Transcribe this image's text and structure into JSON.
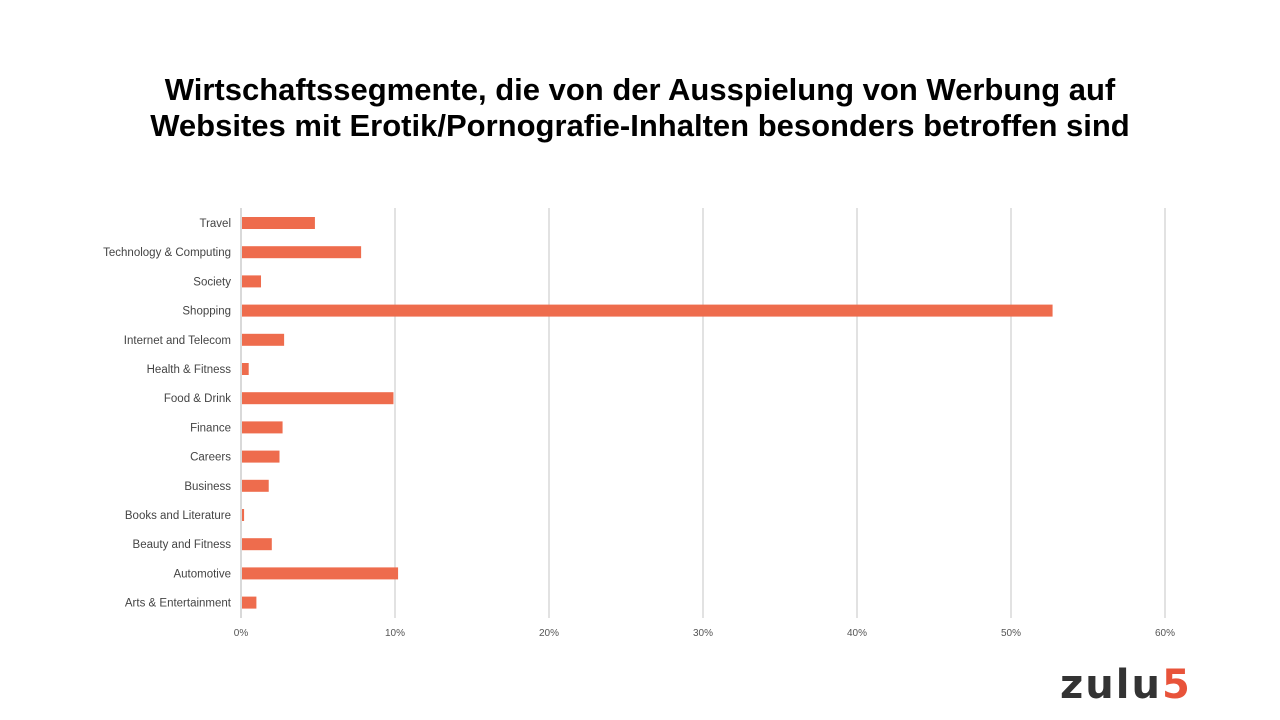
{
  "chart_data": {
    "type": "bar",
    "orientation": "horizontal",
    "title": [
      "Wirtschaftssegmente, die von der Ausspielung von Werbung auf",
      "Websites mit Erotik/Pornografie-Inhalten besonders betroffen sind"
    ],
    "categories": [
      "Travel",
      "Technology & Computing",
      "Society",
      "Shopping",
      "Internet and Telecom",
      "Health & Fitness",
      "Food & Drink",
      "Finance",
      "Careers",
      "Business",
      "Books and Literature",
      "Beauty and Fitness",
      "Automotive",
      "Arts & Entertainment"
    ],
    "values": [
      4.8,
      7.8,
      1.3,
      52.7,
      2.8,
      0.5,
      9.9,
      2.7,
      2.5,
      1.8,
      0.2,
      2.0,
      10.2,
      1.0
    ],
    "xlim": [
      0,
      60
    ],
    "xticks": [
      0,
      10,
      20,
      30,
      40,
      50,
      60
    ],
    "xtick_labels": [
      "0%",
      "10%",
      "20%",
      "30%",
      "40%",
      "50%",
      "60%"
    ],
    "grid": "vertical",
    "bar_color": "#ee6c4d",
    "xlabel": "",
    "ylabel": ""
  },
  "logo": {
    "text": "zulu",
    "number": "5"
  }
}
